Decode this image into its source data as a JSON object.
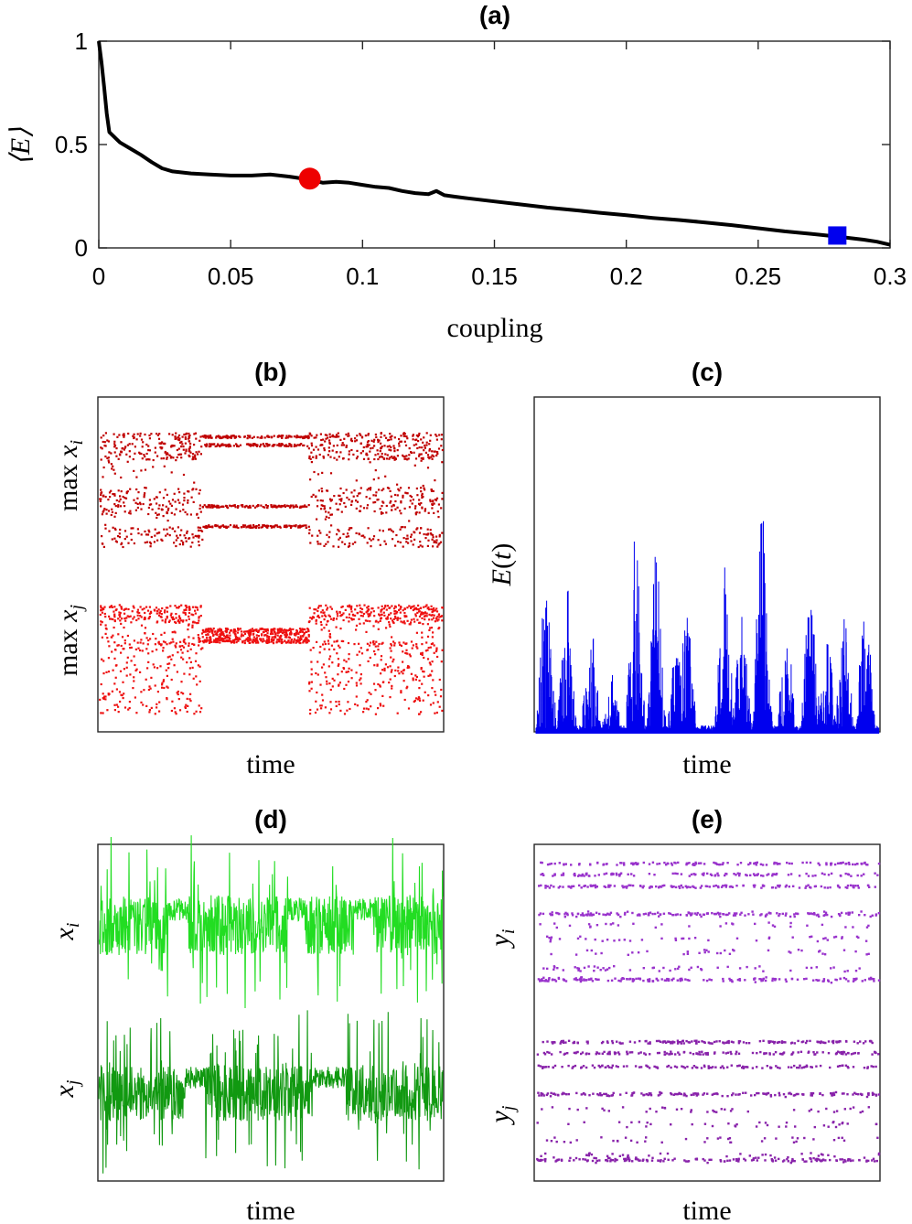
{
  "chart_data": [
    {
      "panel": "a",
      "type": "line",
      "title": "(a)",
      "xlabel": "coupling",
      "ylabel": "⟨E⟩",
      "xlim": [
        0,
        0.3
      ],
      "ylim": [
        0,
        1
      ],
      "xticks": [
        "0",
        "0.05",
        "0.1",
        "0.15",
        "0.2",
        "0.25",
        "0.3"
      ],
      "yticks": [
        "0",
        "0.5",
        "1"
      ],
      "series": [
        {
          "name": "<E>",
          "color": "#000000",
          "x": [
            0,
            0.001,
            0.002,
            0.003,
            0.004,
            0.006,
            0.008,
            0.012,
            0.016,
            0.02,
            0.024,
            0.028,
            0.035,
            0.042,
            0.05,
            0.058,
            0.065,
            0.072,
            0.08,
            0.085,
            0.09,
            0.095,
            0.1,
            0.105,
            0.11,
            0.115,
            0.12,
            0.125,
            0.128,
            0.131,
            0.135,
            0.14,
            0.15,
            0.16,
            0.17,
            0.18,
            0.19,
            0.2,
            0.21,
            0.22,
            0.23,
            0.24,
            0.25,
            0.26,
            0.27,
            0.28,
            0.29,
            0.295,
            0.3
          ],
          "y": [
            1.0,
            0.9,
            0.78,
            0.65,
            0.56,
            0.535,
            0.51,
            0.48,
            0.45,
            0.415,
            0.385,
            0.37,
            0.36,
            0.355,
            0.35,
            0.35,
            0.355,
            0.345,
            0.33,
            0.315,
            0.32,
            0.315,
            0.305,
            0.295,
            0.29,
            0.275,
            0.265,
            0.26,
            0.275,
            0.255,
            0.248,
            0.24,
            0.225,
            0.21,
            0.195,
            0.183,
            0.17,
            0.158,
            0.145,
            0.135,
            0.123,
            0.11,
            0.095,
            0.08,
            0.068,
            0.055,
            0.04,
            0.03,
            0.015
          ]
        }
      ],
      "markers": [
        {
          "name": "red circle",
          "x": 0.08,
          "y": 0.335,
          "color": "#ee0000",
          "shape": "circle"
        },
        {
          "name": "blue square",
          "x": 0.28,
          "y": 0.06,
          "color": "#0000ee",
          "shape": "square"
        }
      ]
    },
    {
      "panel": "b",
      "type": "scatter",
      "title": "(b)",
      "xlabel": "time",
      "ylabels": [
        "max x_i",
        "max x_j"
      ],
      "series": [
        {
          "name": "max x_i",
          "color": "#c00000"
        },
        {
          "name": "max x_j",
          "color": "#ee1111"
        }
      ]
    },
    {
      "panel": "c",
      "type": "line",
      "title": "(c)",
      "xlabel": "time",
      "ylabel": "E(t)",
      "series": [
        {
          "name": "E(t)",
          "color": "#0000ee"
        }
      ]
    },
    {
      "panel": "d",
      "type": "line",
      "title": "(d)",
      "xlabel": "time",
      "ylabels": [
        "x_i",
        "x_j"
      ],
      "series": [
        {
          "name": "x_i",
          "color": "#22dd22"
        },
        {
          "name": "x_j",
          "color": "#119911"
        }
      ]
    },
    {
      "panel": "e",
      "type": "scatter",
      "title": "(e)",
      "xlabel": "time",
      "ylabels": [
        "y_i",
        "y_j"
      ],
      "series": [
        {
          "name": "y_i",
          "color": "#9933cc"
        },
        {
          "name": "y_j",
          "color": "#8822aa"
        }
      ]
    }
  ]
}
